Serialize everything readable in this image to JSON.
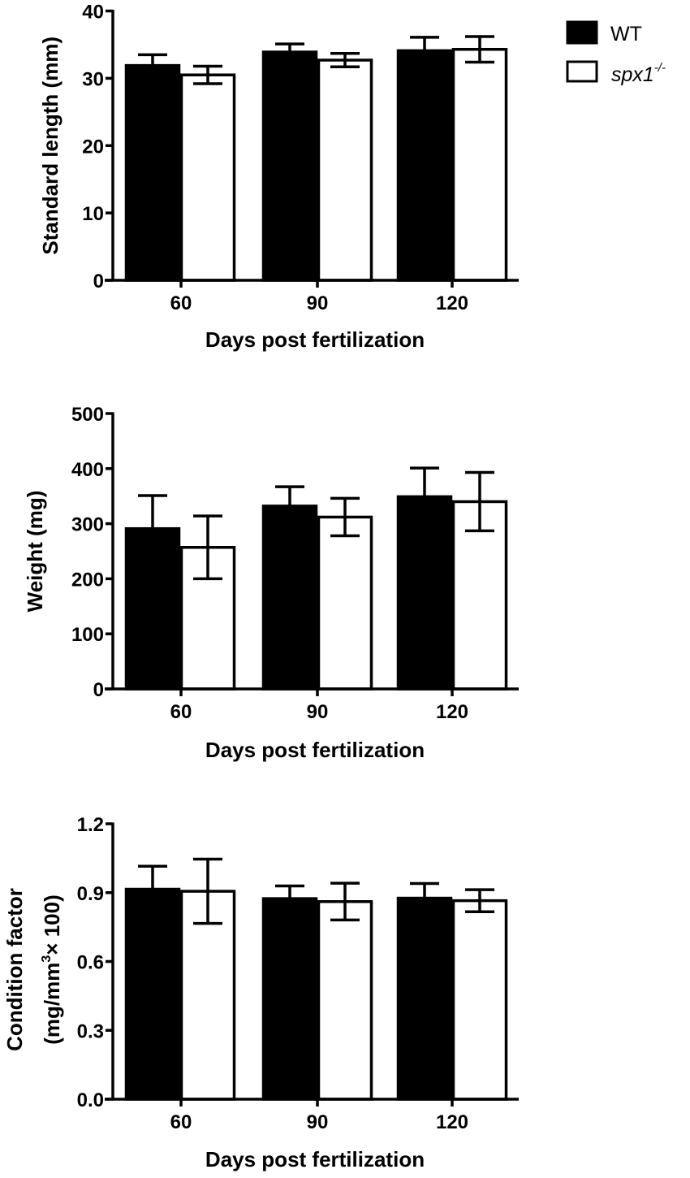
{
  "legend": {
    "items": [
      {
        "label": "WT",
        "fill": "#000000"
      },
      {
        "label": "spx1",
        "superscript": "-/-",
        "fill": "#ffffff"
      }
    ]
  },
  "chart_data": [
    {
      "type": "bar",
      "categories": [
        "60",
        "90",
        "120"
      ],
      "xlabel": "Days post fertilization",
      "ylabel": "Standard length (mm)",
      "ylabel_lines": [
        "Standard length (mm)"
      ],
      "ylim": [
        0,
        40
      ],
      "yticks": [
        0,
        10,
        20,
        30,
        40
      ],
      "ytick_labels": [
        "0",
        "10",
        "20",
        "30",
        "40"
      ],
      "series": [
        {
          "name": "WT",
          "color": "#000000",
          "values": [
            31.9,
            33.9,
            34.1
          ],
          "errors": [
            1.6,
            1.2,
            2.0
          ]
        },
        {
          "name": "spx1-/-",
          "color": "#ffffff",
          "values": [
            30.5,
            32.7,
            34.3
          ],
          "errors": [
            1.3,
            1.0,
            1.9
          ]
        }
      ],
      "error_type": "upper for WT, both for spx1-/-",
      "grid": false,
      "legend": "top-right"
    },
    {
      "type": "bar",
      "categories": [
        "60",
        "90",
        "120"
      ],
      "xlabel": "Days post fertilization",
      "ylabel": "Weight (mg)",
      "ylabel_lines": [
        "Weight (mg)"
      ],
      "ylim": [
        0,
        500
      ],
      "yticks": [
        0,
        100,
        200,
        300,
        400,
        500
      ],
      "ytick_labels": [
        "0",
        "100",
        "200",
        "300",
        "400",
        "500"
      ],
      "series": [
        {
          "name": "WT",
          "color": "#000000",
          "values": [
            291,
            332,
            349
          ],
          "errors": [
            60,
            35,
            52
          ]
        },
        {
          "name": "spx1-/-",
          "color": "#ffffff",
          "values": [
            257,
            312,
            340
          ],
          "errors": [
            57,
            34,
            53
          ]
        }
      ],
      "grid": false
    },
    {
      "type": "bar",
      "categories": [
        "60",
        "90",
        "120"
      ],
      "xlabel": "Days post fertilization",
      "ylabel": "Condition factor (mg/mm3× 100)",
      "ylabel_lines": [
        "Condition factor",
        "(mg/mm",
        "3",
        "× 100)"
      ],
      "ylim": [
        0,
        1.2
      ],
      "yticks": [
        0,
        0.3,
        0.6,
        0.9,
        1.2
      ],
      "ytick_labels": [
        "0.0",
        "0.3",
        "0.6",
        "0.9",
        "1.2"
      ],
      "series": [
        {
          "name": "WT",
          "color": "#000000",
          "values": [
            0.915,
            0.874,
            0.876
          ],
          "errors": [
            0.1,
            0.055,
            0.064
          ]
        },
        {
          "name": "spx1-/-",
          "color": "#ffffff",
          "values": [
            0.906,
            0.861,
            0.865
          ],
          "errors": [
            0.14,
            0.08,
            0.048
          ]
        }
      ],
      "grid": false
    }
  ]
}
